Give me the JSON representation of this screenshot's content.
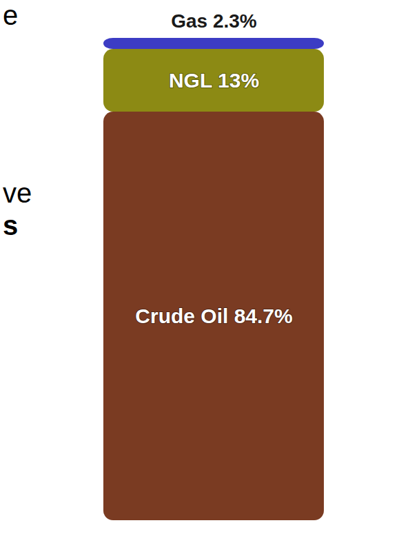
{
  "chart_data": {
    "type": "bar",
    "stacked": true,
    "data_labels": true,
    "tick_labels": false,
    "categories": [
      null
    ],
    "series": [
      {
        "name": "Crude Oil",
        "color": "#7a3b22",
        "values": [
          84.7
        ],
        "value_labels": [
          "Crude Oil 84.7%"
        ]
      },
      {
        "name": "NGL",
        "color": "#8c8a14",
        "values": [
          13
        ],
        "value_labels": [
          "NGL 13%"
        ]
      },
      {
        "name": "Gas",
        "color": "#3c3cc4",
        "values": [
          2.3
        ],
        "value_labels": [
          "Gas 2.3%"
        ]
      }
    ],
    "ylim": [
      0,
      100
    ],
    "annotations": [
      "e",
      "ve",
      "s"
    ]
  }
}
